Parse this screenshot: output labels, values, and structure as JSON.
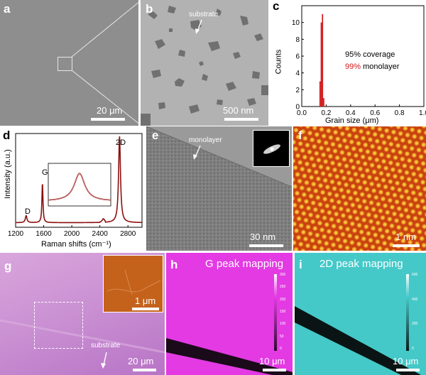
{
  "panels": {
    "a": {
      "label": "a",
      "scalebar": "20 μm"
    },
    "b": {
      "label": "b",
      "scalebar": "500 nm",
      "annotation": "substrate"
    },
    "c": {
      "label": "c",
      "coverage_text": "95% coverage",
      "monolayer_pct": "99%",
      "monolayer_word": "monolayer"
    },
    "d": {
      "label": "d",
      "peaks": {
        "D": "D",
        "G": "G",
        "2D": "2D"
      }
    },
    "e": {
      "label": "e",
      "scalebar": "30 nm",
      "annotation": "monolayer"
    },
    "f": {
      "label": "f",
      "scalebar": "1 nm"
    },
    "g": {
      "label": "g",
      "scalebar": "20 μm",
      "inset_scalebar": "1 μm",
      "annotation": "substrate"
    },
    "h": {
      "label": "h",
      "title": "G peak mapping",
      "scalebar": "10 μm",
      "colorbar_ticks": [
        "300",
        "250",
        "200",
        "150",
        "100",
        "50",
        "0"
      ]
    },
    "i": {
      "label": "i",
      "title": "2D peak mapping",
      "scalebar": "10 μm",
      "colorbar_ticks": [
        "600",
        "400",
        "200",
        "0"
      ]
    }
  },
  "colors": {
    "dark_red": "#8b0f0f",
    "red_text": "#d11919",
    "magenta": "#e33ae3",
    "cyan": "#45c8c8",
    "orange": "#f07a1c"
  },
  "chart_data": [
    {
      "panel": "c",
      "type": "bar",
      "xlabel": "Grain size (μm)",
      "ylabel": "Counts",
      "xlim": [
        0.0,
        1.0
      ],
      "ylim": [
        0,
        12
      ],
      "xticks": [
        "0.0",
        "0.2",
        "0.4",
        "0.6",
        "0.8",
        "1.0"
      ],
      "yticks": [
        "0",
        "2",
        "4",
        "6",
        "8",
        "10"
      ],
      "bins": [
        {
          "x": 0.15,
          "count": 3
        },
        {
          "x": 0.16,
          "count": 10
        },
        {
          "x": 0.17,
          "count": 11
        },
        {
          "x": 0.18,
          "count": 1
        }
      ]
    },
    {
      "panel": "d",
      "type": "line",
      "xlabel": "Raman shifts (cm⁻¹)",
      "ylabel": "Intensity (a.u.)",
      "xlim": [
        1200,
        3000
      ],
      "xticks": [
        "1200",
        "1600",
        "2000",
        "2400",
        "2800"
      ],
      "peaks": [
        {
          "name": "D",
          "x": 1350,
          "height": 0.08
        },
        {
          "name": "G",
          "x": 1582,
          "height": 0.45
        },
        {
          "name": "2D",
          "x": 2680,
          "height": 0.98
        }
      ]
    }
  ]
}
